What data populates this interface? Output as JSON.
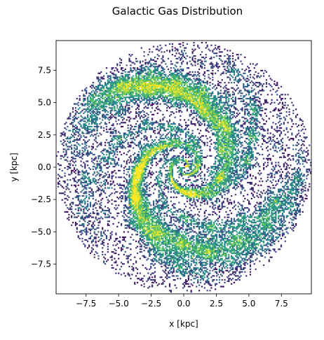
{
  "chart_data": {
    "type": "heatmap",
    "title": "Galactic Gas Distribution",
    "xlabel": "x [kpc]",
    "ylabel": "y [kpc]",
    "xlim": [
      -9.8,
      9.8
    ],
    "ylim": [
      -9.8,
      9.8
    ],
    "xticks": [
      -7.5,
      -5.0,
      -2.5,
      0.0,
      2.5,
      5.0,
      7.5
    ],
    "xtick_labels": [
      "−7.5",
      "−5.0",
      "−2.5",
      "0.0",
      "2.5",
      "5.0",
      "7.5"
    ],
    "yticks": [
      -7.5,
      -5.0,
      -2.5,
      0.0,
      2.5,
      5.0,
      7.5
    ],
    "ytick_labels": [
      "−7.5",
      "−5.0",
      "−2.5",
      "0.0",
      "2.5",
      "5.0",
      "7.5"
    ],
    "grid": false,
    "colormap": "viridis",
    "colormap_stops": [
      "#440154",
      "#3b528b",
      "#21918c",
      "#5ec962",
      "#fde725"
    ],
    "disk_radius": 9.8,
    "spiral_arms": 2,
    "bins": 190,
    "empty_bin_color": "#ffffff"
  }
}
